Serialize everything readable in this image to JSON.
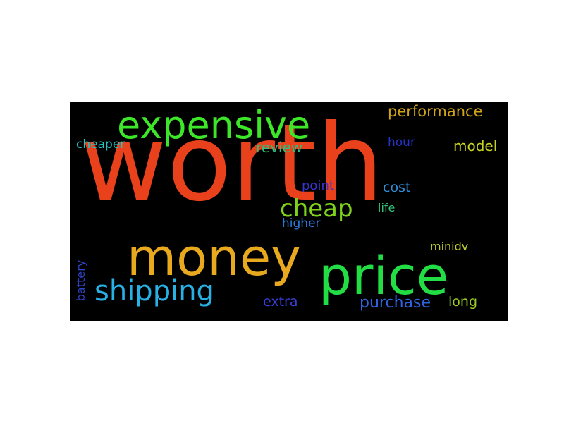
{
  "word_cloud": {
    "background": "#000000",
    "words": {
      "worth": {
        "text": "worth",
        "color": "#e8411c"
      },
      "expensive": {
        "text": "expensive",
        "color": "#3ee62a"
      },
      "money": {
        "text": "money",
        "color": "#e9a91f"
      },
      "price": {
        "text": "price",
        "color": "#22dd44"
      },
      "shipping": {
        "text": "shipping",
        "color": "#27b1e4"
      },
      "cheap": {
        "text": "cheap",
        "color": "#7ed31a"
      },
      "performance": {
        "text": "performance",
        "color": "#d0a418"
      },
      "model": {
        "text": "model",
        "color": "#c6d41f"
      },
      "review": {
        "text": "review",
        "color": "#2fbd7d"
      },
      "cheaper": {
        "text": "cheaper",
        "color": "#22c3c3"
      },
      "hour": {
        "text": "hour",
        "color": "#2432c7"
      },
      "point": {
        "text": "point",
        "color": "#3a35cf"
      },
      "cost": {
        "text": "cost",
        "color": "#2f8ed7"
      },
      "life": {
        "text": "life",
        "color": "#32c279"
      },
      "higher": {
        "text": "higher",
        "color": "#2a7ad8"
      },
      "minidv": {
        "text": "minidv",
        "color": "#c0ce2c"
      },
      "extra": {
        "text": "extra",
        "color": "#3a3edb"
      },
      "purchase": {
        "text": "purchase",
        "color": "#2f63df"
      },
      "long": {
        "text": "long",
        "color": "#9acb26"
      },
      "battery": {
        "text": "battery",
        "color": "#3043c5"
      }
    }
  }
}
